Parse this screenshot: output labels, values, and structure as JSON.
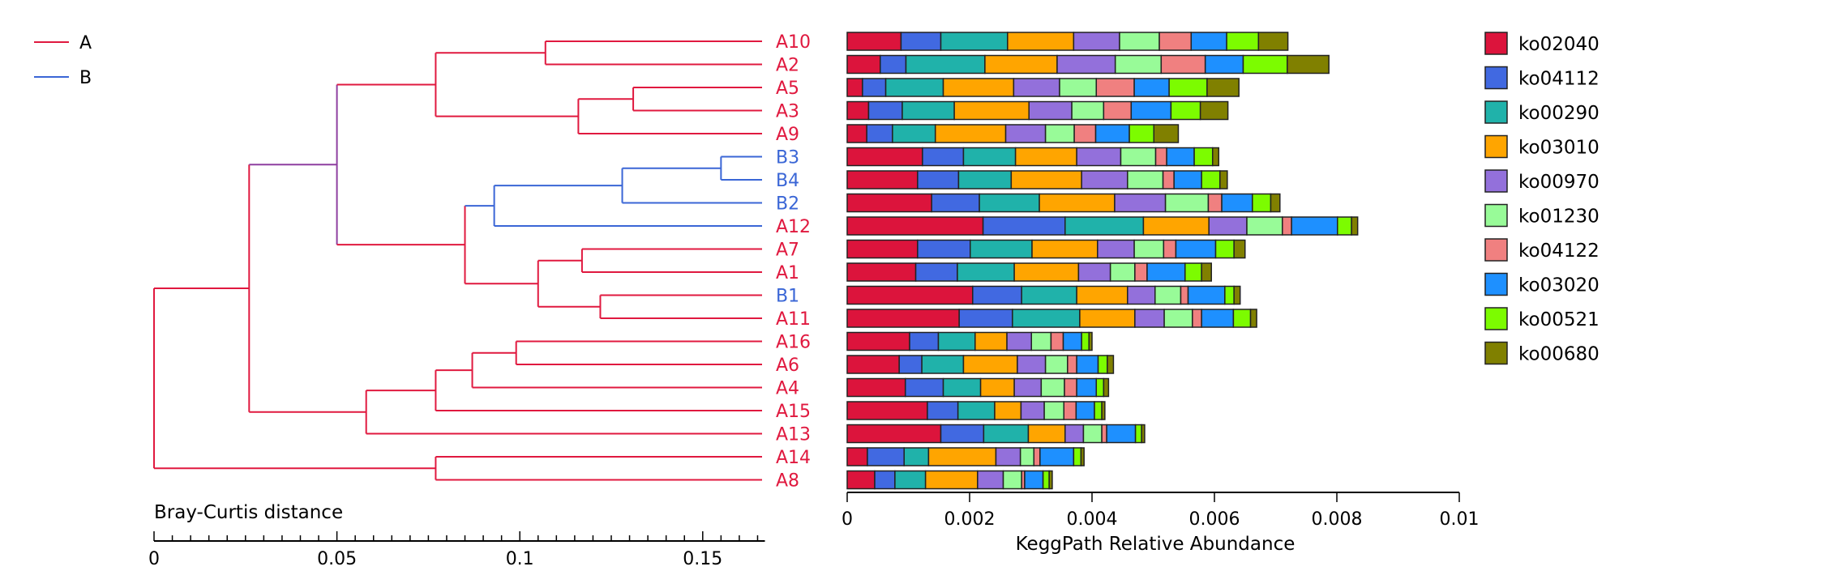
{
  "chart_data": [
    {
      "type": "dendrogram",
      "title": "",
      "xlabel": "Bray-Curtis distance",
      "xlim": [
        0,
        0.167
      ],
      "xticks": [
        0,
        0.05,
        0.1,
        0.15
      ],
      "xtick_labels": [
        "0",
        "0.05",
        "0.1",
        "0.15"
      ],
      "legend": [
        {
          "label": "A",
          "color": "#E0193F"
        },
        {
          "label": "B",
          "color": "#3A66D6"
        }
      ],
      "leaf_order": [
        "A10",
        "A2",
        "A5",
        "A3",
        "A9",
        "B3",
        "B4",
        "B2",
        "A12",
        "A7",
        "A1",
        "B1",
        "A11",
        "A16",
        "A6",
        "A4",
        "A15",
        "A13",
        "A14",
        "A8"
      ],
      "merges": [
        {
          "children": [
            "A5",
            "A3"
          ],
          "height": 0.131,
          "color": "#E0193F"
        },
        {
          "children": [
            "B3",
            "B4"
          ],
          "height": 0.155,
          "color": "#3A66D6"
        },
        {
          "children": [
            "B1",
            "A11"
          ],
          "height": 0.122,
          "color": "#E0193F"
        },
        {
          "children": [
            "A7",
            "A1"
          ],
          "height": 0.117,
          "color": "#E0193F"
        },
        {
          "children": [
            "A16",
            "A6"
          ],
          "height": 0.099,
          "color": "#E0193F"
        },
        {
          "children": [
            "A10",
            "A2"
          ],
          "height": 0.107,
          "color": "#E0193F"
        },
        {
          "children": [
            "A5+A3",
            "A9"
          ],
          "height": 0.116,
          "color": "#E0193F"
        },
        {
          "children": [
            "B3+B4",
            "B2"
          ],
          "height": 0.128,
          "color": "#3A66D6"
        },
        {
          "children": [
            "A7+A1",
            "B1+A11"
          ],
          "height": 0.105,
          "color": "#E0193F"
        },
        {
          "children": [
            "A16+A6",
            "A4"
          ],
          "height": 0.087,
          "color": "#E0193F"
        },
        {
          "children": [
            "A14",
            "A8"
          ],
          "height": 0.077,
          "color": "#E0193F"
        },
        {
          "children": [
            "B3+B4+B2",
            "A12"
          ],
          "height": 0.093,
          "color": "#3A66D6"
        },
        {
          "children": [
            "A16+A6+A4",
            "A15"
          ],
          "height": 0.077,
          "color": "#E0193F"
        },
        {
          "children": [
            "A10+A2",
            "A5+A3+A9"
          ],
          "height": 0.077,
          "color": "#E0193F"
        },
        {
          "children": [
            "B3+B4+B2+A12",
            "A7+A1+B1+A11"
          ],
          "height": 0.085,
          "color": "#E0193F"
        },
        {
          "children": [
            "A16+A6+A4+A15",
            "A13"
          ],
          "height": 0.058,
          "color": "#E0193F"
        },
        {
          "children": [
            "A10+A2+A5+A3+A9",
            "B3+B4+B2+A12+A7+A1+B1+A11"
          ],
          "height": 0.05,
          "color": "#8E3FA0"
        },
        {
          "children": [
            "A10..A11",
            "A16..A13"
          ],
          "height": 0.026,
          "color": "#E0193F"
        },
        {
          "children": [
            "A10..A13",
            "A14+A8"
          ],
          "height": 0.0,
          "color": "#E0193F"
        }
      ]
    },
    {
      "type": "bar",
      "stacked": true,
      "orientation": "horizontal",
      "title": "",
      "xlabel": "KeggPath Relative Abundance",
      "ylabel": "",
      "xlim": [
        0,
        0.01
      ],
      "xticks": [
        0,
        0.002,
        0.004,
        0.006,
        0.008,
        0.01
      ],
      "xtick_labels": [
        "0",
        "0.002",
        "0.004",
        "0.006",
        "0.008",
        "0.01"
      ],
      "legend_position": "right",
      "categories": [
        "A10",
        "A2",
        "A5",
        "A3",
        "A9",
        "B3",
        "B4",
        "B2",
        "A12",
        "A7",
        "A1",
        "B1",
        "A11",
        "A16",
        "A6",
        "A4",
        "A15",
        "A13",
        "A14",
        "A8"
      ],
      "category_colors": [
        "#E0193F",
        "#E0193F",
        "#E0193F",
        "#E0193F",
        "#E0193F",
        "#3A66D6",
        "#3A66D6",
        "#3A66D6",
        "#E0193F",
        "#E0193F",
        "#E0193F",
        "#3A66D6",
        "#E0193F",
        "#E0193F",
        "#E0193F",
        "#E0193F",
        "#E0193F",
        "#E0193F",
        "#E0193F",
        "#E0193F"
      ],
      "series": [
        {
          "name": "ko02040",
          "color": "#DC143C",
          "values": [
            0.00088,
            0.00054,
            0.00025,
            0.00035,
            0.00032,
            0.00123,
            0.00115,
            0.00138,
            0.00222,
            0.00115,
            0.00112,
            0.00205,
            0.00183,
            0.00102,
            0.00085,
            0.00095,
            0.00131,
            0.00153,
            0.00033,
            0.00045
          ]
        },
        {
          "name": "ko04112",
          "color": "#4169E1",
          "values": [
            0.00065,
            0.00042,
            0.00038,
            0.00055,
            0.00042,
            0.00067,
            0.00067,
            0.00078,
            0.00134,
            0.00086,
            0.00068,
            0.0008,
            0.00087,
            0.00047,
            0.00037,
            0.00062,
            0.0005,
            0.0007,
            0.0006,
            0.00033
          ]
        },
        {
          "name": "ko00290",
          "color": "#20B2AA",
          "values": [
            0.00109,
            0.00129,
            0.00094,
            0.00085,
            0.0007,
            0.00085,
            0.00086,
            0.00098,
            0.00128,
            0.00101,
            0.00093,
            0.0009,
            0.0011,
            0.0006,
            0.00068,
            0.00061,
            0.0006,
            0.00073,
            0.0004,
            0.0005
          ]
        },
        {
          "name": "ko03010",
          "color": "#FFA500",
          "values": [
            0.00108,
            0.00118,
            0.00115,
            0.00122,
            0.00115,
            0.001,
            0.00115,
            0.00123,
            0.00107,
            0.00107,
            0.00105,
            0.00083,
            0.0009,
            0.00052,
            0.00088,
            0.00055,
            0.00043,
            0.0006,
            0.0011,
            0.00085
          ]
        },
        {
          "name": "ko00970",
          "color": "#9370DB",
          "values": [
            0.00075,
            0.00095,
            0.00075,
            0.0007,
            0.00065,
            0.00072,
            0.00075,
            0.00083,
            0.00062,
            0.0006,
            0.00052,
            0.00045,
            0.00048,
            0.0004,
            0.00046,
            0.00044,
            0.00038,
            0.0003,
            0.0004,
            0.00042
          ]
        },
        {
          "name": "ko01230",
          "color": "#98FB98",
          "values": [
            0.00065,
            0.00075,
            0.0006,
            0.00052,
            0.00047,
            0.00057,
            0.00058,
            0.0007,
            0.00058,
            0.00048,
            0.0004,
            0.00042,
            0.00046,
            0.00032,
            0.00036,
            0.00038,
            0.00032,
            0.0003,
            0.00022,
            0.0003
          ]
        },
        {
          "name": "ko04122",
          "color": "#F08080",
          "values": [
            0.00052,
            0.00072,
            0.00062,
            0.00045,
            0.00035,
            0.00018,
            0.00018,
            0.00022,
            0.00015,
            0.0002,
            0.0002,
            0.00012,
            0.00015,
            0.0002,
            0.00015,
            0.0002,
            0.0002,
            8e-05,
            0.0001,
            5e-05
          ]
        },
        {
          "name": "ko03020",
          "color": "#1E90FF",
          "values": [
            0.00058,
            0.00062,
            0.00057,
            0.00065,
            0.00055,
            0.00045,
            0.00045,
            0.0005,
            0.00075,
            0.00065,
            0.00062,
            0.0006,
            0.00052,
            0.0003,
            0.00035,
            0.00032,
            0.0003,
            0.00047,
            0.00055,
            0.0003
          ]
        },
        {
          "name": "ko00521",
          "color": "#7CFC00",
          "values": [
            0.00052,
            0.00072,
            0.00062,
            0.00048,
            0.0004,
            0.0003,
            0.0003,
            0.0003,
            0.00023,
            0.0003,
            0.00027,
            0.00015,
            0.00028,
            0.00012,
            0.00015,
            0.00012,
            0.00012,
            0.0001,
            0.00012,
            0.0001
          ]
        },
        {
          "name": "ko00680",
          "color": "#808000",
          "values": [
            0.00048,
            0.00068,
            0.00052,
            0.00045,
            0.0004,
            0.0001,
            0.00012,
            0.00015,
            0.0001,
            0.00018,
            0.00016,
            0.0001,
            0.0001,
            5e-05,
            0.0001,
            8e-05,
            5e-05,
            5e-05,
            5e-05,
            5e-05
          ]
        }
      ]
    }
  ]
}
